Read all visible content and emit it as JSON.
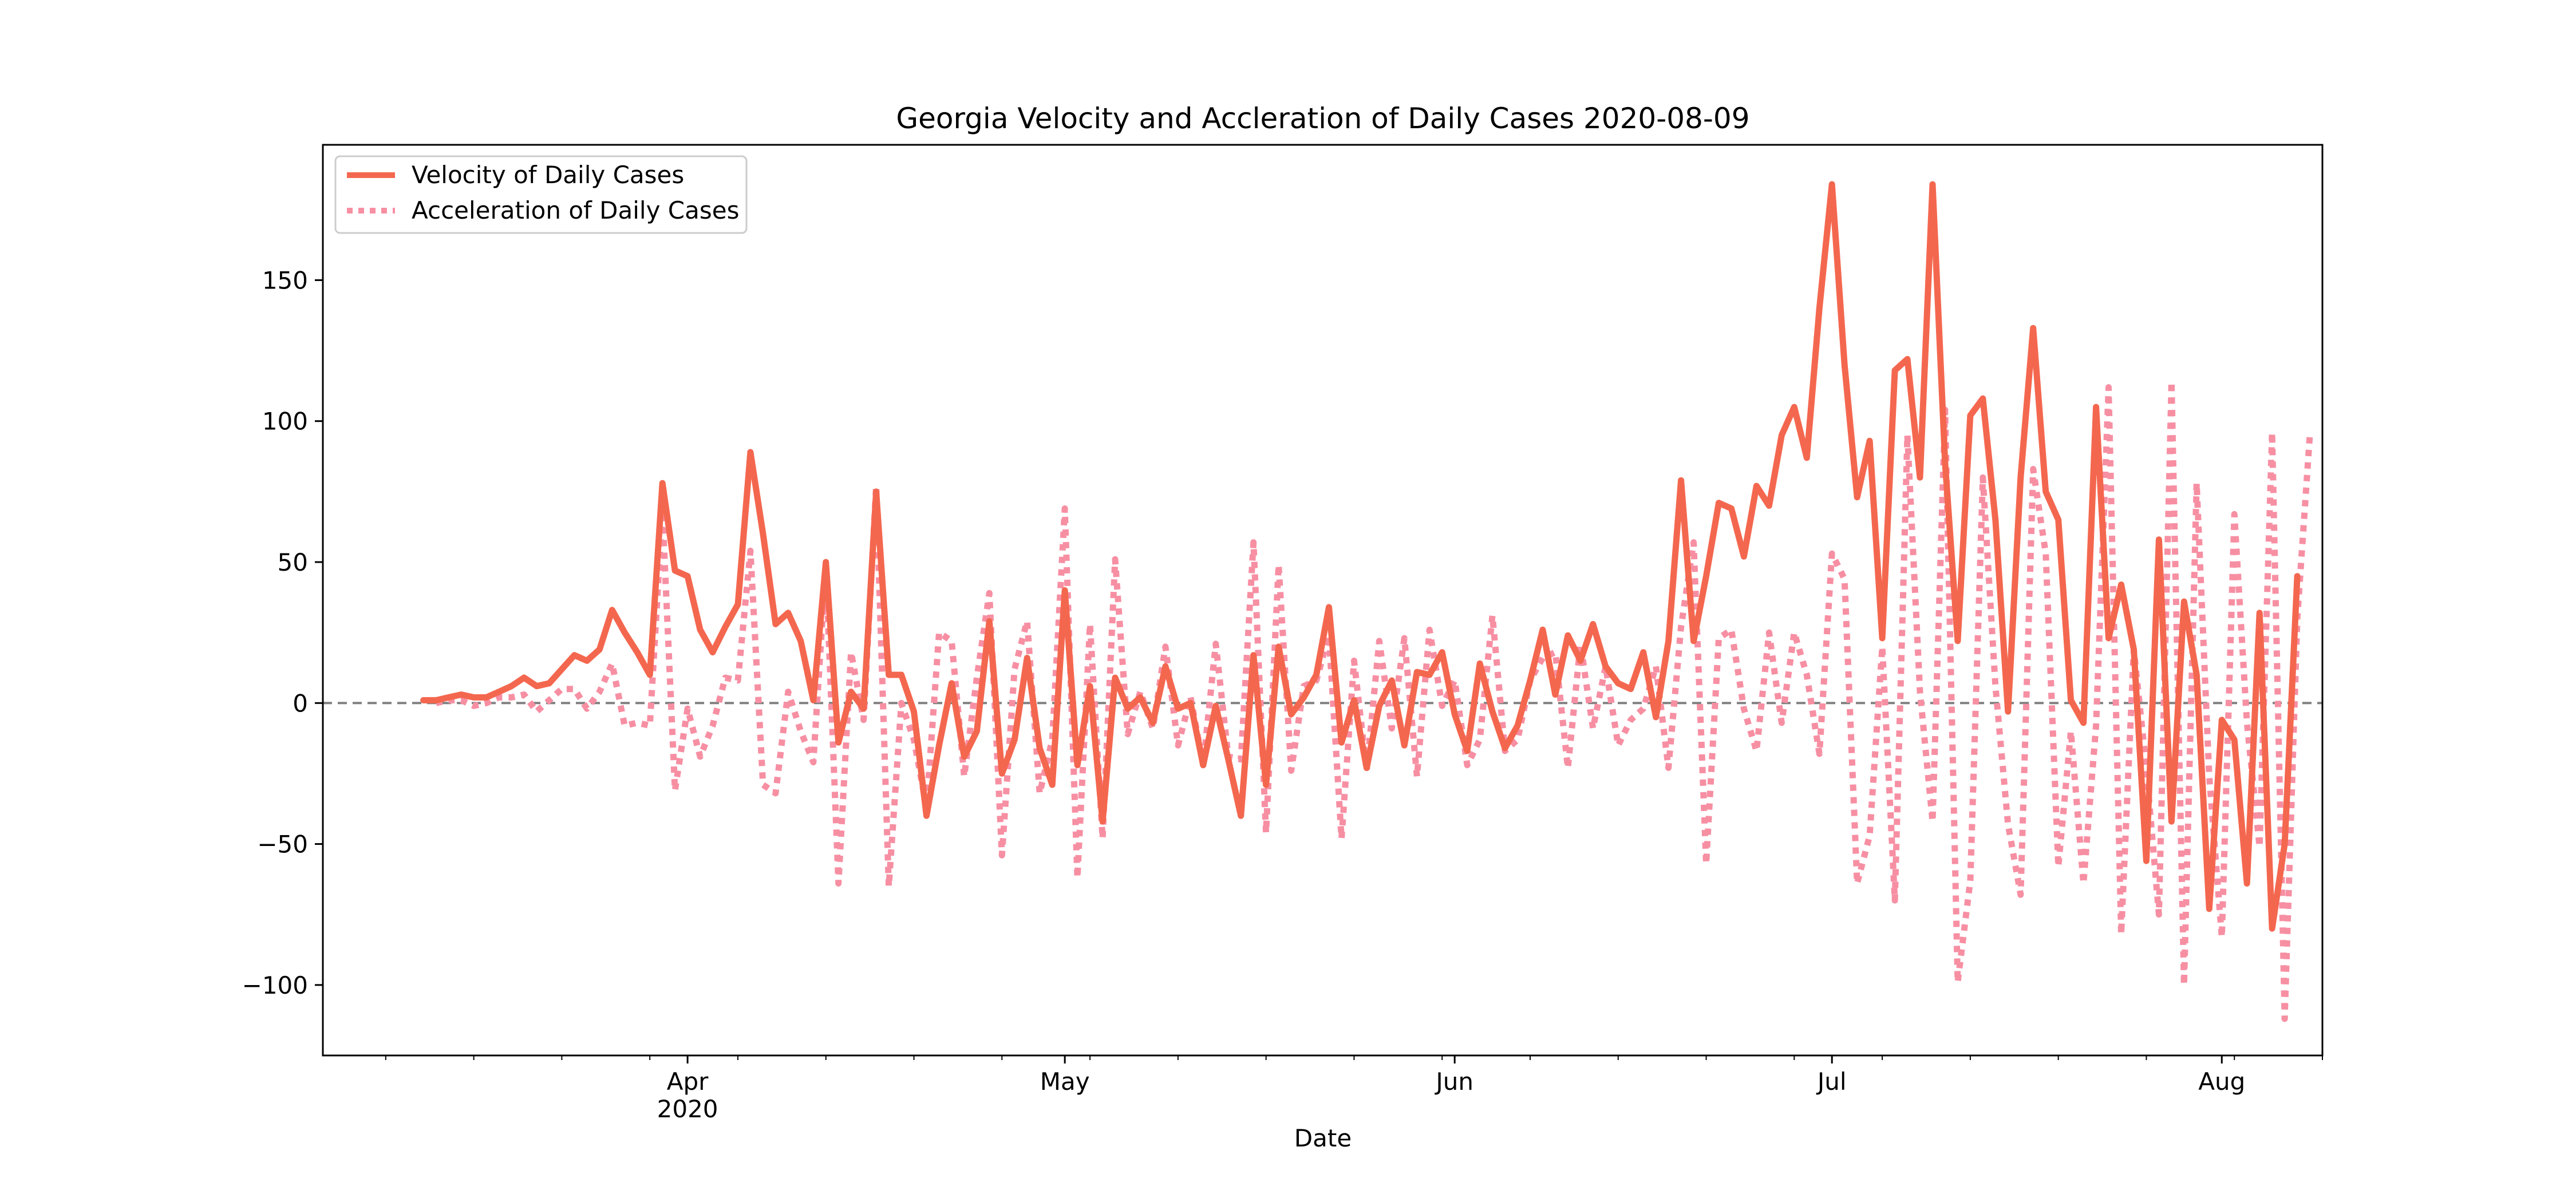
{
  "chart_data": {
    "type": "line",
    "title": "Georgia Velocity and Accleration of Daily Cases 2020-08-09",
    "xlabel": "Date",
    "ylabel": "",
    "ylim": [
      -125,
      198
    ],
    "xlim": [
      "2020-03-03",
      "2020-08-09"
    ],
    "grid": false,
    "legend_position": "top-left",
    "x_ticks": [
      {
        "date": "2020-04-01",
        "label": "Apr",
        "sublabel": "2020"
      },
      {
        "date": "2020-05-01",
        "label": "May",
        "sublabel": ""
      },
      {
        "date": "2020-06-01",
        "label": "Jun",
        "sublabel": ""
      },
      {
        "date": "2020-07-01",
        "label": "Jul",
        "sublabel": ""
      },
      {
        "date": "2020-08-01",
        "label": "Aug",
        "sublabel": ""
      }
    ],
    "y_ticks": [
      -100,
      -50,
      0,
      50,
      100,
      150
    ],
    "zero_line": {
      "value": 0,
      "color": "#808080",
      "style": "dashed"
    },
    "series": [
      {
        "name": "Velocity of Daily Cases",
        "color": "#f4674f",
        "style": "solid",
        "start_date": "2020-03-11",
        "values": [
          1,
          1,
          2,
          3,
          2,
          2,
          4,
          6,
          9,
          6,
          7,
          12,
          17,
          15,
          19,
          33,
          25,
          18,
          10,
          78,
          47,
          45,
          26,
          18,
          27,
          35,
          89,
          60,
          28,
          32,
          22,
          1,
          50,
          -14,
          4,
          -2,
          75,
          10,
          10,
          -3,
          -40,
          -15,
          7,
          -19,
          -10,
          29,
          -25,
          -13,
          16,
          -16,
          -29,
          40,
          -22,
          6,
          -42,
          9,
          -2,
          2,
          -7,
          13,
          -2,
          0,
          -22,
          -1,
          -20,
          -40,
          17,
          -29,
          20,
          -4,
          2,
          10,
          34,
          -14,
          1,
          -23,
          -1,
          8,
          -15,
          11,
          10,
          18,
          -4,
          -17,
          14,
          -3,
          -16,
          -8,
          8,
          26,
          3,
          24,
          15,
          28,
          13,
          7,
          5,
          18,
          -5,
          22,
          79,
          22,
          45,
          71,
          69,
          52,
          77,
          70,
          95,
          105,
          87,
          140,
          184,
          120,
          73,
          93,
          23,
          118,
          122,
          80,
          184,
          85,
          22,
          102,
          108,
          65,
          -3,
          80,
          133,
          75,
          65,
          1,
          -7,
          105,
          23,
          42,
          19,
          -56,
          58,
          -42,
          36,
          10,
          -73,
          -6,
          -13,
          -64,
          32,
          -80,
          -50,
          45
        ]
      },
      {
        "name": "Acceleration of Daily Cases",
        "color": "#f78fa3",
        "style": "dotted",
        "start_date": "2020-03-12",
        "values": [
          0,
          1,
          1,
          -1,
          0,
          2,
          2,
          3,
          -3,
          1,
          5,
          5,
          -2,
          4,
          14,
          -8,
          -7,
          -8,
          68,
          -31,
          -2,
          -19,
          -8,
          9,
          8,
          54,
          -29,
          -32,
          4,
          -10,
          -21,
          49,
          -64,
          18,
          -6,
          77,
          -65,
          0,
          -13,
          -37,
          25,
          22,
          -26,
          9,
          39,
          -54,
          12,
          29,
          -32,
          -13,
          69,
          -62,
          28,
          -48,
          51,
          -11,
          4,
          -9,
          20,
          -15,
          2,
          -22,
          21,
          -19,
          -20,
          57,
          -46,
          49,
          -24,
          6,
          8,
          24,
          -48,
          15,
          -24,
          22,
          -9,
          23,
          -26,
          26,
          -1,
          8,
          -22,
          -13,
          31,
          -17,
          -13,
          8,
          16,
          18,
          -23,
          21,
          -9,
          13,
          -15,
          -6,
          -2,
          13,
          -23,
          27,
          57,
          -57,
          23,
          26,
          -2,
          -17,
          25,
          -7,
          25,
          10,
          -18,
          53,
          44,
          -64,
          -47,
          20,
          -70,
          95,
          4,
          -42,
          104,
          -99,
          -63,
          80,
          6,
          -43,
          -68,
          83,
          53,
          -58,
          -10,
          -64,
          -8,
          112,
          -82,
          19,
          -23,
          -75,
          114,
          -100,
          78,
          -26,
          -83,
          67,
          -7,
          -51,
          96,
          -112,
          30,
          95
        ]
      }
    ]
  }
}
